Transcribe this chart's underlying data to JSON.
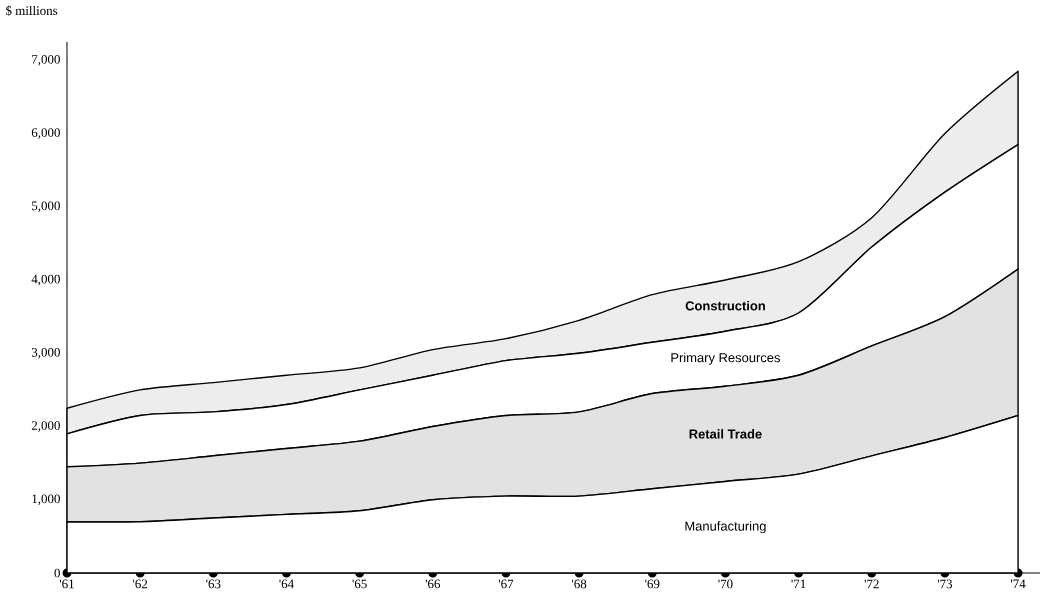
{
  "chart_data": {
    "type": "area",
    "stacked": true,
    "ylabel": "$ millions",
    "x": [
      1961,
      1962,
      1963,
      1964,
      1965,
      1966,
      1967,
      1968,
      1969,
      1970,
      1971,
      1972,
      1973,
      1974
    ],
    "xlim": [
      1961,
      1974.3
    ],
    "ylim": [
      0,
      7250
    ],
    "xticks": [
      {
        "value": 1961,
        "label": "'61"
      },
      {
        "value": 1962,
        "label": "'62"
      },
      {
        "value": 1963,
        "label": "'63"
      },
      {
        "value": 1964,
        "label": "'64"
      },
      {
        "value": 1965,
        "label": "'65"
      },
      {
        "value": 1966,
        "label": "'66"
      },
      {
        "value": 1967,
        "label": "'67"
      },
      {
        "value": 1968,
        "label": "'68"
      },
      {
        "value": 1969,
        "label": "'69"
      },
      {
        "value": 1970,
        "label": "'70"
      },
      {
        "value": 1971,
        "label": "'71"
      },
      {
        "value": 1972,
        "label": "'72"
      },
      {
        "value": 1973,
        "label": "'73"
      },
      {
        "value": 1974,
        "label": "'74"
      }
    ],
    "yticks": [
      0,
      {
        "value": 1000,
        "label": "1,000"
      },
      {
        "value": 2000,
        "label": "2,000"
      },
      {
        "value": 3000,
        "label": "3,000"
      },
      {
        "value": 4000,
        "label": "4,000"
      },
      {
        "value": 5000,
        "label": "5,000"
      },
      {
        "value": 6000,
        "label": "6,000"
      },
      {
        "value": 7000,
        "label": "7,000"
      }
    ],
    "series": [
      {
        "name": "Manufacturing",
        "color": "#ffffff",
        "values": [
          700,
          700,
          750,
          800,
          850,
          1000,
          1050,
          1050,
          1150,
          1250,
          1350,
          1600,
          1850,
          2150
        ]
      },
      {
        "name": "Retail Trade",
        "color": "#e2e2e2",
        "values": [
          750,
          800,
          850,
          900,
          950,
          1000,
          1100,
          1150,
          1300,
          1300,
          1350,
          1500,
          1650,
          2000
        ]
      },
      {
        "name": "Primary Resources",
        "color": "#ffffff",
        "values": [
          450,
          650,
          600,
          600,
          700,
          700,
          750,
          800,
          700,
          750,
          850,
          1350,
          1700,
          1700
        ]
      },
      {
        "name": "Construction",
        "color": "#ededed",
        "values": [
          350,
          350,
          400,
          400,
          300,
          350,
          300,
          450,
          650,
          700,
          700,
          400,
          800,
          1000
        ]
      }
    ]
  }
}
